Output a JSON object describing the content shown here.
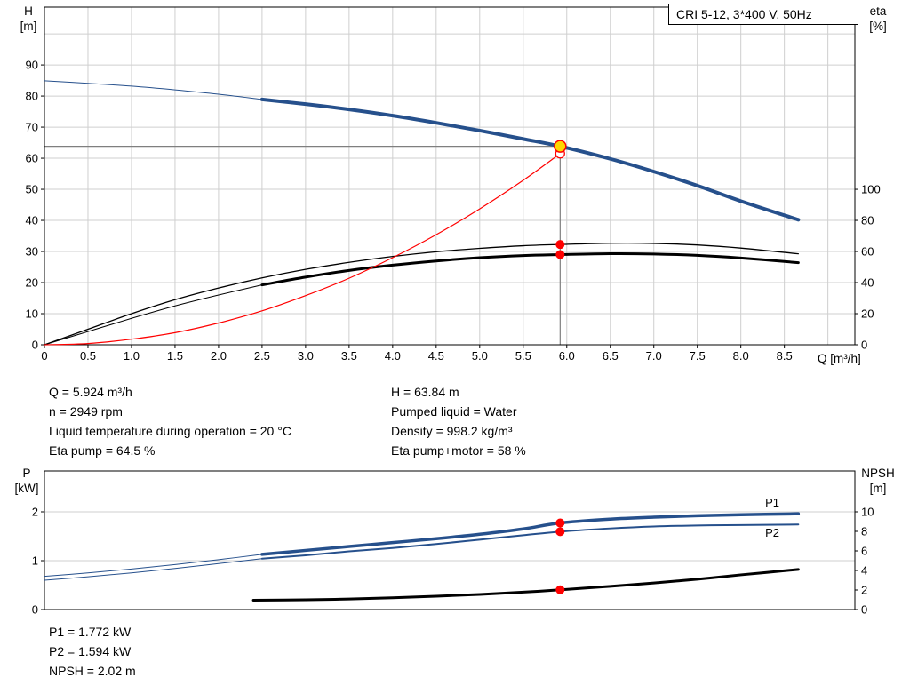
{
  "colors": {
    "curve_blue": "#26508C",
    "marker_red": "#FF0000",
    "duty_yellow": "#FFD700",
    "grid": "#CFCFCF",
    "crosshair": "#7F7F7F",
    "black": "#000000"
  },
  "info": {
    "q": "Q = 5.924 m³/h",
    "n": "n = 2949 rpm",
    "liquid_temp": "Liquid temperature during operation = 20 °C",
    "eta_pump": "Eta pump = 64.5 %",
    "h": "H = 63.84 m",
    "pumped_liquid": "Pumped liquid = Water",
    "density": "Density = 998.2 kg/m³",
    "eta_pump_motor": "Eta pump+motor = 58 %",
    "p1": "P1 = 1.772 kW",
    "p2": "P2 = 1.594 kW",
    "npsh": "NPSH = 2.02 m"
  },
  "chart_data": [
    {
      "type": "line",
      "name": "qh-curve-chart",
      "title": "CRI 5-12, 3*400 V, 50Hz",
      "x_axis": {
        "min": 0,
        "max": 9.31,
        "label": "Q [m³/h]",
        "ticks": [
          {
            "v": 0,
            "t": "0"
          },
          {
            "v": 0.5,
            "t": "0.5"
          },
          {
            "v": 1,
            "t": "1.0"
          },
          {
            "v": 1.5,
            "t": "1.5"
          },
          {
            "v": 2,
            "t": "2.0"
          },
          {
            "v": 2.5,
            "t": "2.5"
          },
          {
            "v": 3,
            "t": "3.0"
          },
          {
            "v": 3.5,
            "t": "3.5"
          },
          {
            "v": 4,
            "t": "4.0"
          },
          {
            "v": 4.5,
            "t": "4.5"
          },
          {
            "v": 5,
            "t": "5.0"
          },
          {
            "v": 5.5,
            "t": "5.5"
          },
          {
            "v": 6,
            "t": "6.0"
          },
          {
            "v": 6.5,
            "t": "6.5"
          },
          {
            "v": 7,
            "t": "7.0"
          },
          {
            "v": 7.5,
            "t": "7.5"
          },
          {
            "v": 8,
            "t": "8.0"
          },
          {
            "v": 8.5,
            "t": "8.5"
          }
        ]
      },
      "y_left": {
        "min": 0,
        "max": 108.6,
        "label": "H [m]",
        "label_lines": [
          "H",
          "[m]"
        ],
        "ticks": [
          {
            "v": 0,
            "t": "0"
          },
          {
            "v": 10,
            "t": "10"
          },
          {
            "v": 20,
            "t": "20"
          },
          {
            "v": 30,
            "t": "30"
          },
          {
            "v": 40,
            "t": "40"
          },
          {
            "v": 50,
            "t": "50"
          },
          {
            "v": 60,
            "t": "60"
          },
          {
            "v": 70,
            "t": "70"
          },
          {
            "v": 80,
            "t": "80"
          },
          {
            "v": 90,
            "t": "90"
          }
        ],
        "grid": [
          10,
          20,
          30,
          40,
          50,
          60,
          70,
          80,
          90,
          100
        ]
      },
      "y_right": {
        "label": "eta [%]",
        "label_lines": [
          "eta",
          "[%]"
        ],
        "scale": 2,
        "ticks": [
          {
            "v": 0,
            "t": "0"
          },
          {
            "v": 20,
            "t": "20"
          },
          {
            "v": 40,
            "t": "40"
          },
          {
            "v": 60,
            "t": "60"
          },
          {
            "v": 80,
            "t": "80"
          },
          {
            "v": 100,
            "t": "100"
          }
        ]
      },
      "grid_x": [
        0.5,
        1,
        1.5,
        2,
        2.5,
        3,
        3.5,
        4,
        4.5,
        5,
        5.5,
        6,
        6.5,
        7,
        7.5,
        8,
        8.5,
        9
      ],
      "crosshair": {
        "x": 5.924,
        "y": 63.84
      },
      "series": [
        {
          "name": "pump-curve-preview",
          "color": "#26508C",
          "width": 1,
          "axis": "left",
          "points": [
            [
              0,
              84.9
            ],
            [
              0.5,
              84.1
            ],
            [
              1,
              83.2
            ],
            [
              1.5,
              82.0
            ],
            [
              2,
              80.6
            ],
            [
              2.5,
              78.9
            ]
          ]
        },
        {
          "name": "eta-pump-curve",
          "color": "#000000",
          "width": 1.3,
          "axis": "right",
          "points": [
            [
              0,
              0
            ],
            [
              0.5,
              10
            ],
            [
              1,
              20
            ],
            [
              1.5,
              29
            ],
            [
              2,
              36.5
            ],
            [
              2.5,
              43
            ],
            [
              3,
              48.5
            ],
            [
              3.5,
              53
            ],
            [
              4,
              56.8
            ],
            [
              4.5,
              59.8
            ],
            [
              5,
              62
            ],
            [
              5.5,
              63.7
            ],
            [
              5.924,
              64.5
            ],
            [
              6.5,
              65.3
            ],
            [
              7,
              65.2
            ],
            [
              7.5,
              64.2
            ],
            [
              8,
              62.2
            ],
            [
              8.66,
              58.5
            ]
          ]
        },
        {
          "name": "eta-pump-motor-preview",
          "color": "#000000",
          "width": 1,
          "axis": "right",
          "points": [
            [
              0,
              0
            ],
            [
              0.5,
              8.5
            ],
            [
              1,
              17
            ],
            [
              1.5,
              25
            ],
            [
              2,
              32
            ],
            [
              2.5,
              38.5
            ]
          ]
        },
        {
          "name": "eta-pump-motor-curve",
          "color": "#000000",
          "width": 3,
          "axis": "right",
          "points": [
            [
              2.5,
              38.5
            ],
            [
              3,
              43.5
            ],
            [
              3.5,
              47.8
            ],
            [
              4,
              51.2
            ],
            [
              4.5,
              53.9
            ],
            [
              5,
              56
            ],
            [
              5.5,
              57.4
            ],
            [
              5.924,
              58
            ],
            [
              6.5,
              58.6
            ],
            [
              7,
              58.4
            ],
            [
              7.5,
              57.5
            ],
            [
              8,
              55.8
            ],
            [
              8.66,
              52.8
            ]
          ]
        },
        {
          "name": "pump-curve",
          "color": "#26508C",
          "width": 4,
          "axis": "left",
          "points": [
            [
              2.5,
              78.9
            ],
            [
              3,
              77.4
            ],
            [
              3.5,
              75.7
            ],
            [
              4,
              73.7
            ],
            [
              4.5,
              71.4
            ],
            [
              5,
              68.9
            ],
            [
              5.5,
              66.2
            ],
            [
              5.924,
              63.84
            ],
            [
              6.5,
              59.8
            ],
            [
              7,
              55.7
            ],
            [
              7.5,
              51.2
            ],
            [
              8,
              46.2
            ],
            [
              8.66,
              40.2
            ]
          ]
        },
        {
          "name": "system-curve",
          "color": "#FF0000",
          "width": 1.2,
          "axis": "left",
          "points": [
            [
              0,
              0
            ],
            [
              0.5,
              0.4
            ],
            [
              1,
              1.8
            ],
            [
              1.5,
              3.9
            ],
            [
              2,
              7
            ],
            [
              2.5,
              10.9
            ],
            [
              3,
              15.8
            ],
            [
              3.5,
              21.4
            ],
            [
              4,
              28
            ],
            [
              4.5,
              35.4
            ],
            [
              5,
              43.7
            ],
            [
              5.5,
              52.9
            ],
            [
              5.924,
              61.5
            ]
          ]
        }
      ],
      "markers": [
        {
          "name": "system-intersection-point",
          "x": 5.924,
          "y": 61.5,
          "axis": "left",
          "r": 5,
          "fill": "#FFFFFF",
          "stroke": "#FF0000",
          "stroke_width": 1.3
        },
        {
          "name": "eta-pump-duty-point",
          "x": 5.924,
          "y": 64.5,
          "axis": "right",
          "r": 5,
          "fill": "#FF0000"
        },
        {
          "name": "eta-pump-motor-duty-point",
          "x": 5.924,
          "y": 58,
          "axis": "right",
          "r": 5,
          "fill": "#FF0000"
        },
        {
          "name": "duty-point",
          "x": 5.924,
          "y": 63.84,
          "axis": "left",
          "r": 6.5,
          "fill": "#FFD700",
          "stroke": "#FF0000",
          "stroke_width": 1.5,
          "interactable": true
        }
      ],
      "annotations": []
    },
    {
      "type": "line",
      "name": "power-npsh-chart",
      "x_axis": {
        "min": 0,
        "max": 9.31,
        "label": "",
        "ticks": []
      },
      "y_left": {
        "min": 0,
        "max": 2.836,
        "label": "P [kW]",
        "label_lines": [
          "P",
          "[kW]"
        ],
        "ticks": [
          {
            "v": 0,
            "t": "0"
          },
          {
            "v": 1,
            "t": "1"
          },
          {
            "v": 2,
            "t": "2"
          }
        ],
        "grid": [
          1,
          2
        ]
      },
      "y_right": {
        "label": "NPSH [m]",
        "label_lines": [
          "NPSH",
          "[m]"
        ],
        "scale": 5,
        "ticks": [
          {
            "v": 0,
            "t": "0"
          },
          {
            "v": 2,
            "t": "2"
          },
          {
            "v": 4,
            "t": "4"
          },
          {
            "v": 6,
            "t": "6"
          },
          {
            "v": 8,
            "t": "8"
          },
          {
            "v": 10,
            "t": "10"
          }
        ]
      },
      "grid_x": [],
      "series": [
        {
          "name": "p1-curve-preview",
          "color": "#26508C",
          "width": 1,
          "axis": "left",
          "points": [
            [
              0,
              0.68
            ],
            [
              0.5,
              0.75
            ],
            [
              1,
              0.83
            ],
            [
              1.5,
              0.92
            ],
            [
              2,
              1.02
            ],
            [
              2.5,
              1.13
            ]
          ]
        },
        {
          "name": "p2-curve-preview",
          "color": "#26508C",
          "width": 1,
          "axis": "left",
          "points": [
            [
              0,
              0.6
            ],
            [
              0.5,
              0.67
            ],
            [
              1,
              0.75
            ],
            [
              1.5,
              0.84
            ],
            [
              2,
              0.94
            ],
            [
              2.5,
              1.04
            ]
          ]
        },
        {
          "name": "p1-curve",
          "color": "#26508C",
          "width": 3.5,
          "axis": "left",
          "points": [
            [
              2.5,
              1.13
            ],
            [
              3,
              1.21
            ],
            [
              3.5,
              1.29
            ],
            [
              4,
              1.37
            ],
            [
              4.5,
              1.45
            ],
            [
              5,
              1.54
            ],
            [
              5.5,
              1.65
            ],
            [
              5.924,
              1.772
            ],
            [
              6.5,
              1.85
            ],
            [
              7,
              1.89
            ],
            [
              7.5,
              1.92
            ],
            [
              8,
              1.94
            ],
            [
              8.66,
              1.96
            ]
          ]
        },
        {
          "name": "p2-curve",
          "color": "#26508C",
          "width": 2,
          "axis": "left",
          "points": [
            [
              2.5,
              1.04
            ],
            [
              3,
              1.11
            ],
            [
              3.5,
              1.19
            ],
            [
              4,
              1.26
            ],
            [
              4.5,
              1.34
            ],
            [
              5,
              1.43
            ],
            [
              5.5,
              1.52
            ],
            [
              5.924,
              1.594
            ],
            [
              6.5,
              1.66
            ],
            [
              7,
              1.7
            ],
            [
              7.5,
              1.72
            ],
            [
              8,
              1.73
            ],
            [
              8.66,
              1.74
            ]
          ]
        },
        {
          "name": "npsh-curve",
          "color": "#000000",
          "width": 3,
          "axis": "right",
          "points": [
            [
              2.4,
              0.95
            ],
            [
              3,
              1.0
            ],
            [
              3.5,
              1.08
            ],
            [
              4,
              1.2
            ],
            [
              4.5,
              1.36
            ],
            [
              5,
              1.55
            ],
            [
              5.5,
              1.78
            ],
            [
              5.924,
              2.02
            ],
            [
              6.5,
              2.38
            ],
            [
              7,
              2.72
            ],
            [
              7.5,
              3.1
            ],
            [
              8,
              3.55
            ],
            [
              8.66,
              4.1
            ]
          ]
        }
      ],
      "markers": [
        {
          "name": "p1-duty-point",
          "x": 5.924,
          "y": 1.772,
          "axis": "left",
          "r": 5,
          "fill": "#FF0000"
        },
        {
          "name": "p2-duty-point",
          "x": 5.924,
          "y": 1.594,
          "axis": "left",
          "r": 5,
          "fill": "#FF0000"
        },
        {
          "name": "npsh-duty-point",
          "x": 5.924,
          "y": 2.02,
          "axis": "right",
          "r": 5,
          "fill": "#FF0000"
        }
      ],
      "annotations": [
        {
          "name": "p1-curve-label",
          "text": "P1",
          "x": 8.28,
          "y": 2.2,
          "color": "#26508C",
          "size": 15
        },
        {
          "name": "p2-curve-label",
          "text": "P2",
          "x": 8.28,
          "y": 1.58,
          "color": "#26508C",
          "size": 15
        }
      ]
    }
  ]
}
